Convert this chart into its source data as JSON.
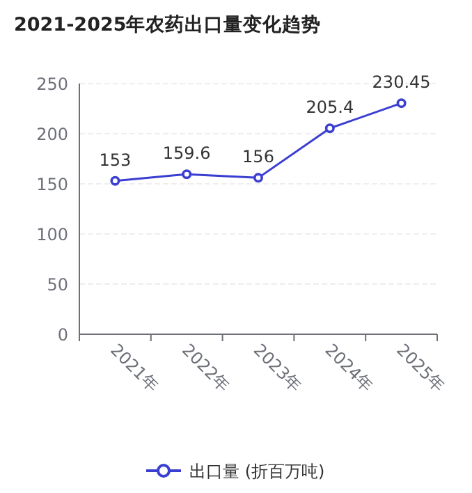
{
  "chart_data": {
    "type": "line",
    "title": "2021-2025年农药出口量变化趋势",
    "categories": [
      "2021年",
      "2022年",
      "2023年",
      "2024年",
      "2025年"
    ],
    "series": [
      {
        "name": "出口量 (折百万吨)",
        "color": "#3b3fd1",
        "values": [
          153,
          159.6,
          156,
          205.4,
          230.45
        ]
      }
    ],
    "ylim": [
      0,
      250
    ],
    "yticks": [
      0,
      50,
      100,
      150,
      200,
      250
    ],
    "grid": "y",
    "legend": "bottom",
    "marker": "circle",
    "line_style": "solid",
    "data_labels": true
  }
}
